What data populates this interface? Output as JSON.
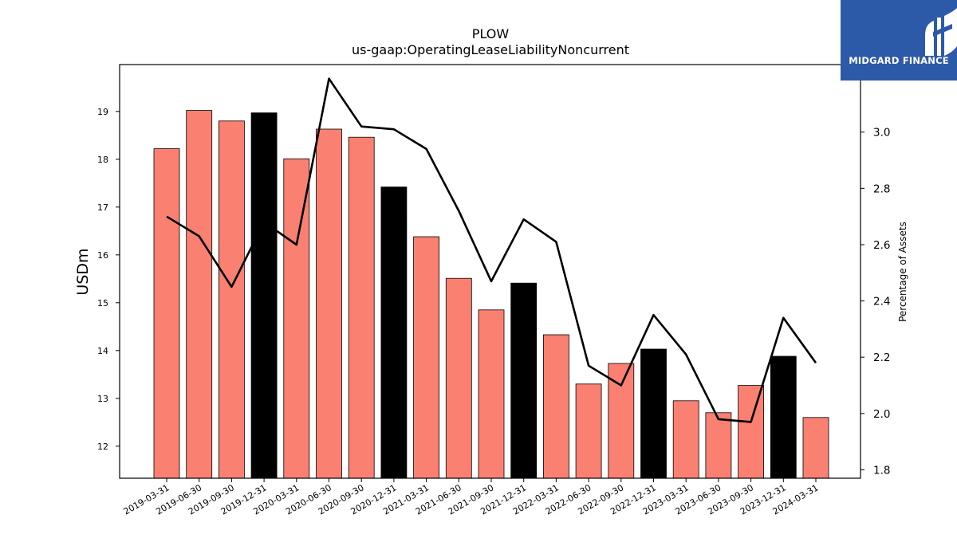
{
  "brand": {
    "name": "MIDGARD FINANCE",
    "logo_color": "#2d5aa8"
  },
  "chart_data": {
    "type": "bar",
    "title": "PLOW",
    "subtitle": "us-gaap:OperatingLeaseLiabilityNoncurrent",
    "ylabel": "USDm",
    "y2label": "Percentage of Assets",
    "ylim": [
      11.33,
      19.98
    ],
    "y2lim": [
      1.77,
      3.24
    ],
    "yticks": [
      12,
      13,
      14,
      15,
      16,
      17,
      18,
      19
    ],
    "y2ticks": [
      "1.8",
      "2.0",
      "2.2",
      "2.4",
      "2.6",
      "2.8",
      "3.0"
    ],
    "grid": false,
    "categories": [
      "2019-03-31",
      "2019-06-30",
      "2019-09-30",
      "2019-12-31",
      "2020-03-31",
      "2020-06-30",
      "2020-09-30",
      "2020-12-31",
      "2021-03-31",
      "2021-06-30",
      "2021-09-30",
      "2021-12-31",
      "2022-03-31",
      "2022-06-30",
      "2022-09-30",
      "2022-12-31",
      "2023-03-31",
      "2023-06-30",
      "2023-09-30",
      "2023-12-31",
      "2024-03-31"
    ],
    "series": [
      {
        "kind": "bar",
        "axis": "left",
        "values": [
          18.22,
          19.02,
          18.8,
          18.97,
          18.01,
          18.63,
          18.46,
          17.42,
          16.38,
          15.51,
          14.85,
          15.41,
          14.33,
          13.3,
          13.73,
          14.03,
          12.95,
          12.7,
          13.27,
          13.88,
          12.6
        ],
        "colors": [
          "#fa8072",
          "#fa8072",
          "#fa8072",
          "#000000",
          "#fa8072",
          "#fa8072",
          "#fa8072",
          "#000000",
          "#fa8072",
          "#fa8072",
          "#fa8072",
          "#000000",
          "#fa8072",
          "#fa8072",
          "#fa8072",
          "#000000",
          "#fa8072",
          "#fa8072",
          "#fa8072",
          "#000000",
          "#fa8072"
        ]
      },
      {
        "kind": "line",
        "axis": "right",
        "color": "#000000",
        "values": [
          2.7,
          2.63,
          2.45,
          2.68,
          2.6,
          3.19,
          3.02,
          3.01,
          2.94,
          2.72,
          2.47,
          2.69,
          2.61,
          2.17,
          2.1,
          2.35,
          2.21,
          1.98,
          1.97,
          2.34,
          2.18
        ]
      }
    ]
  }
}
